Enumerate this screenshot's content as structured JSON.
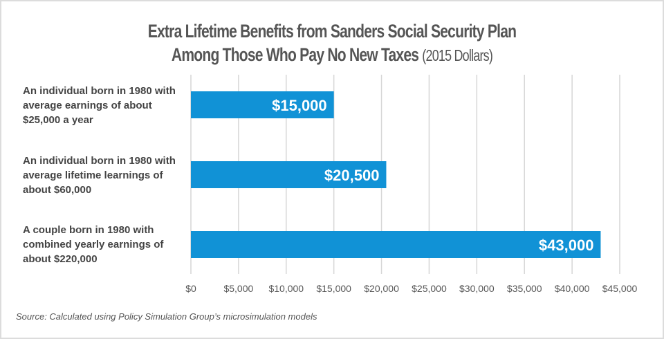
{
  "chart_data": {
    "type": "bar",
    "orientation": "horizontal",
    "title": "Extra Lifetime Benefits from Sanders Social Security Plan Among Those Who Pay No New Taxes",
    "title_line1": "Extra Lifetime Benefits from Sanders Social Security Plan",
    "title_line2": "Among Those Who Pay No New Taxes",
    "subtitle": "(2015 Dollars)",
    "categories": [
      "An individual born in 1980 with average earnings of about $25,000 a year",
      "An individual born in 1980 with average lifetime learnings of about $60,000",
      "A couple born in 1980 with combined yearly earnings of about $220,000"
    ],
    "values": [
      15000,
      20500,
      43000
    ],
    "data_labels": [
      "$15,000",
      "$20,500",
      "$43,000"
    ],
    "xlim": [
      0,
      45000
    ],
    "xticks": [
      0,
      5000,
      10000,
      15000,
      20000,
      25000,
      30000,
      35000,
      40000,
      45000
    ],
    "xtick_labels": [
      "$0",
      "$5,000",
      "$10,000",
      "$15,000",
      "$20,000",
      "$25,000",
      "$30,000",
      "$35,000",
      "$40,000",
      "$45,000"
    ],
    "grid": true,
    "bar_color": "#1192d6",
    "source": "Source: Calculated using Policy Simulation Group’s microsimulation models"
  }
}
